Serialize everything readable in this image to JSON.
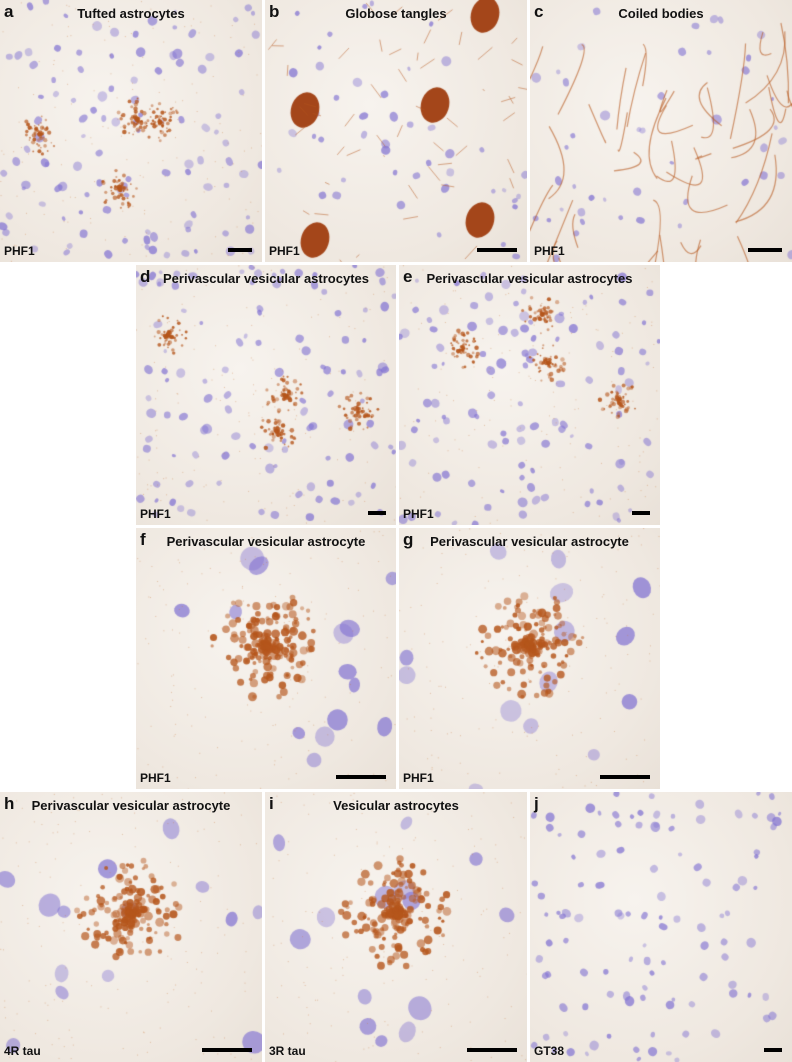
{
  "panels": [
    {
      "letter": "a",
      "title": "Tufted astrocytes",
      "stain": "PHF1",
      "kind": "tufted"
    },
    {
      "letter": "b",
      "title": "Globose tangles",
      "stain": "PHF1",
      "kind": "globose"
    },
    {
      "letter": "c",
      "title": "Coiled bodies",
      "stain": "PHF1",
      "kind": "coiled"
    },
    {
      "letter": "d",
      "title": "Perivascular vesicular astrocytes",
      "stain": "PHF1",
      "kind": "pva-low"
    },
    {
      "letter": "e",
      "title": "Perivascular vesicular astrocytes",
      "stain": "PHF1",
      "kind": "pva-low"
    },
    {
      "letter": "f",
      "title": "Perivascular vesicular astrocyte",
      "stain": "PHF1",
      "kind": "pva-high"
    },
    {
      "letter": "g",
      "title": "Perivascular vesicular astrocyte",
      "stain": "PHF1",
      "kind": "pva-high"
    },
    {
      "letter": "h",
      "title": "Perivascular vesicular astrocyte",
      "stain": "4R tau",
      "kind": "pva-high"
    },
    {
      "letter": "i",
      "title": "Vesicular astrocytes",
      "stain": "3R tau",
      "kind": "vesicular"
    },
    {
      "letter": "j",
      "title": "",
      "stain": "GT38",
      "kind": "negative"
    }
  ],
  "colors": {
    "hematoxylin": "#8f86d6",
    "dab": "#b5561c"
  }
}
